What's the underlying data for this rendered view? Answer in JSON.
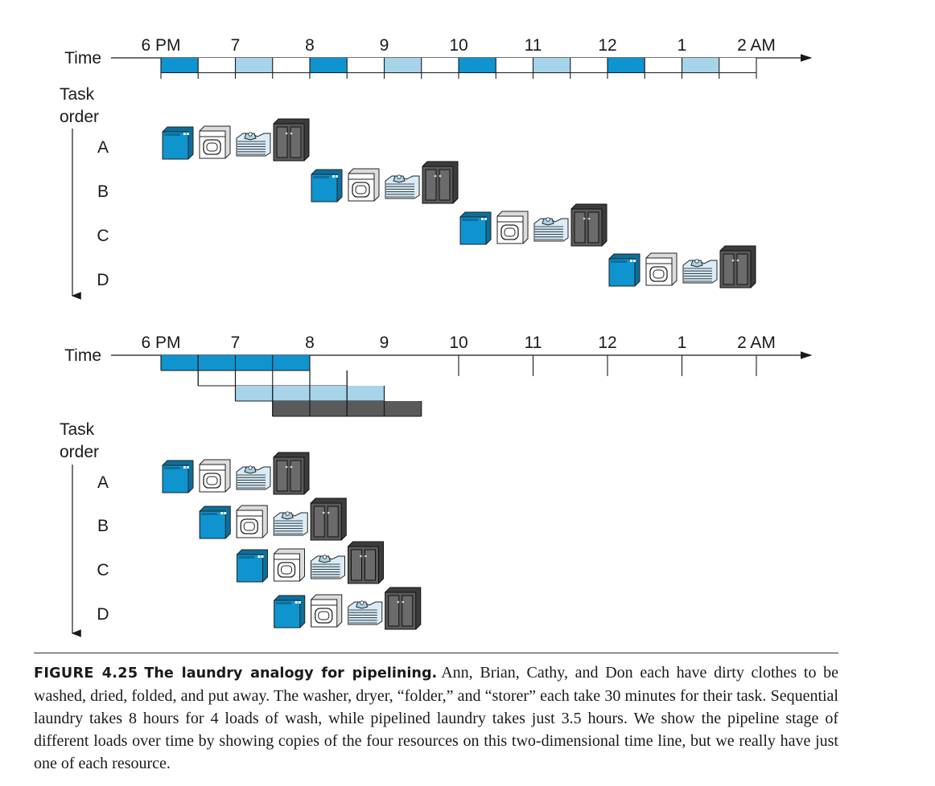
{
  "colors": {
    "washer": "#0f94cf",
    "dryer": "#ffffff",
    "folder": "#a8d4ea",
    "storer": "#5a5a5a",
    "line": "#1a1a1a"
  },
  "sequential": {
    "time_label": "Time",
    "task_order_label_1": "Task",
    "task_order_label_2": "order",
    "hour_labels": [
      "6 PM",
      "7",
      "8",
      "9",
      "10",
      "11",
      "12",
      "1",
      "2 AM"
    ],
    "tasks": [
      "A",
      "B",
      "C",
      "D"
    ]
  },
  "pipelined": {
    "time_label": "Time",
    "task_order_label_1": "Task",
    "task_order_label_2": "order",
    "hour_labels": [
      "6 PM",
      "7",
      "8",
      "9",
      "10",
      "11",
      "12",
      "1",
      "2 AM"
    ],
    "tasks": [
      "A",
      "B",
      "C",
      "D"
    ]
  },
  "caption": {
    "figure_number": "FIGURE 4.25",
    "title": "The laundry analogy for pipelining.",
    "body": "Ann, Brian, Cathy, and Don each have dirty clothes to be washed, dried, folded, and put away. The washer, dryer, “folder,” and “storer” each take 30 minutes for their task. Sequential laundry takes 8 hours for 4 loads of wash, while pipelined laundry takes just 3.5 hours. We show the pipeline stage of different loads over time by showing copies of the four resources on this two-dimensional time line, but we really have just one of each resource."
  }
}
